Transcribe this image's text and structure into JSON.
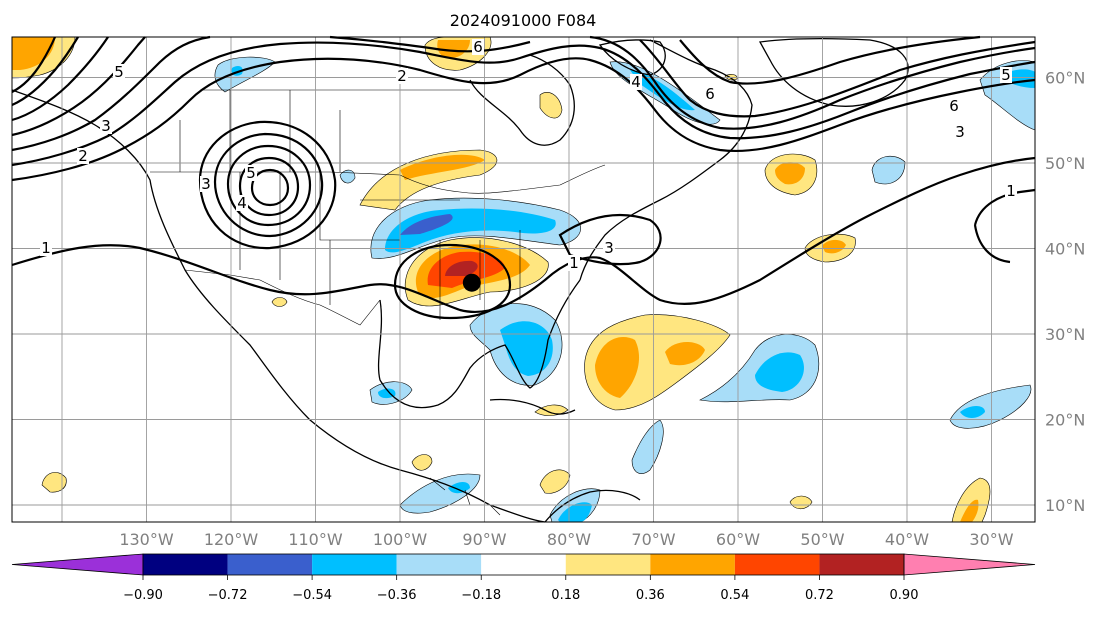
{
  "title": "2024091000 F084",
  "map": {
    "lon_labels": [
      "130°W",
      "120°W",
      "110°W",
      "100°W",
      "90°W",
      "80°W",
      "70°W",
      "60°W",
      "50°W",
      "40°W",
      "30°W"
    ],
    "lat_labels": [
      "60°N",
      "50°N",
      "40°N",
      "30°N",
      "20°N",
      "10°N"
    ],
    "contour_labels": [
      "1",
      "2",
      "3",
      "4",
      "5",
      "6"
    ],
    "marker": {
      "lon": -91.5,
      "lat": 36.0
    }
  },
  "colorbar": {
    "ticks": [
      "−0.90",
      "−0.72",
      "−0.54",
      "−0.36",
      "−0.18",
      "0.18",
      "0.36",
      "0.54",
      "0.72",
      "0.90"
    ],
    "colors": {
      "under": "#9b30d9",
      "bins": [
        "#000080",
        "#3a5fcd",
        "#00bfff",
        "#a8ddf8",
        "#ffffff",
        "#ffe680",
        "#ffa500",
        "#ff4500",
        "#b22222"
      ],
      "over": "#ff7fb0"
    }
  }
}
